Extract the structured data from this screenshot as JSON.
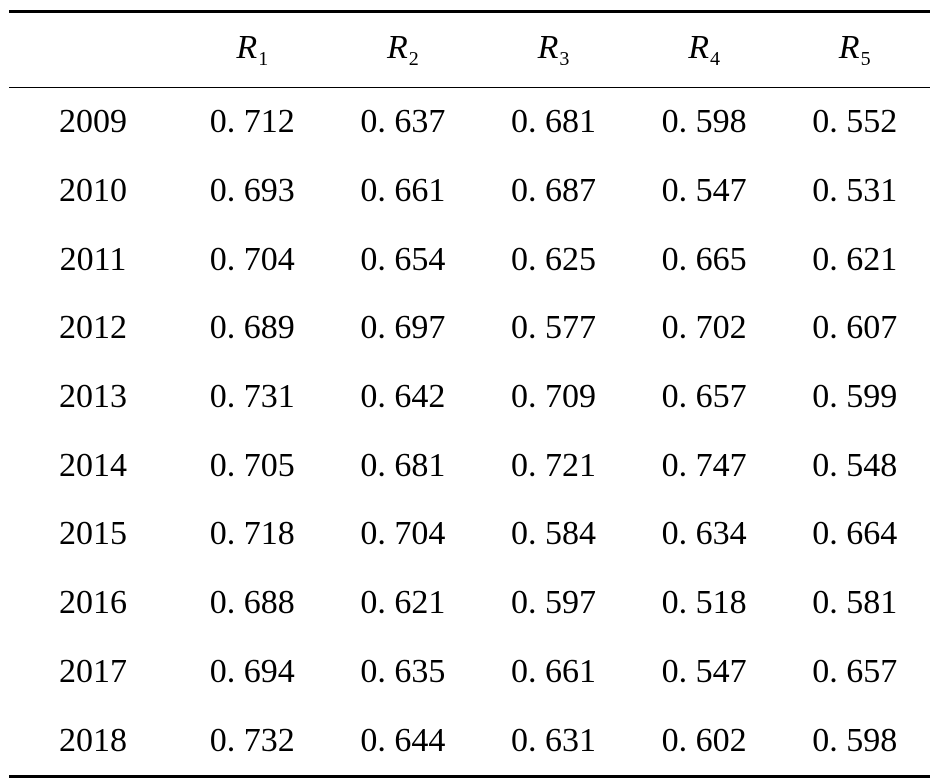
{
  "table": {
    "columns": [
      {
        "letter": "R",
        "sub": "1"
      },
      {
        "letter": "R",
        "sub": "2"
      },
      {
        "letter": "R",
        "sub": "3"
      },
      {
        "letter": "R",
        "sub": "4"
      },
      {
        "letter": "R",
        "sub": "5"
      }
    ],
    "rows": [
      {
        "year": "2009",
        "values": [
          "0. 712",
          "0. 637",
          "0. 681",
          "0. 598",
          "0. 552"
        ]
      },
      {
        "year": "2010",
        "values": [
          "0. 693",
          "0. 661",
          "0. 687",
          "0. 547",
          "0. 531"
        ]
      },
      {
        "year": "2011",
        "values": [
          "0. 704",
          "0. 654",
          "0. 625",
          "0. 665",
          "0. 621"
        ]
      },
      {
        "year": "2012",
        "values": [
          "0. 689",
          "0. 697",
          "0. 577",
          "0. 702",
          "0. 607"
        ]
      },
      {
        "year": "2013",
        "values": [
          "0. 731",
          "0. 642",
          "0. 709",
          "0. 657",
          "0. 599"
        ]
      },
      {
        "year": "2014",
        "values": [
          "0. 705",
          "0. 681",
          "0. 721",
          "0. 747",
          "0. 548"
        ]
      },
      {
        "year": "2015",
        "values": [
          "0. 718",
          "0. 704",
          "0. 584",
          "0. 634",
          "0. 664"
        ]
      },
      {
        "year": "2016",
        "values": [
          "0. 688",
          "0. 621",
          "0. 597",
          "0. 518",
          "0. 581"
        ]
      },
      {
        "year": "2017",
        "values": [
          "0. 694",
          "0. 635",
          "0. 661",
          "0. 547",
          "0. 657"
        ]
      },
      {
        "year": "2018",
        "values": [
          "0. 732",
          "0. 644",
          "0. 631",
          "0. 602",
          "0. 598"
        ]
      }
    ]
  }
}
